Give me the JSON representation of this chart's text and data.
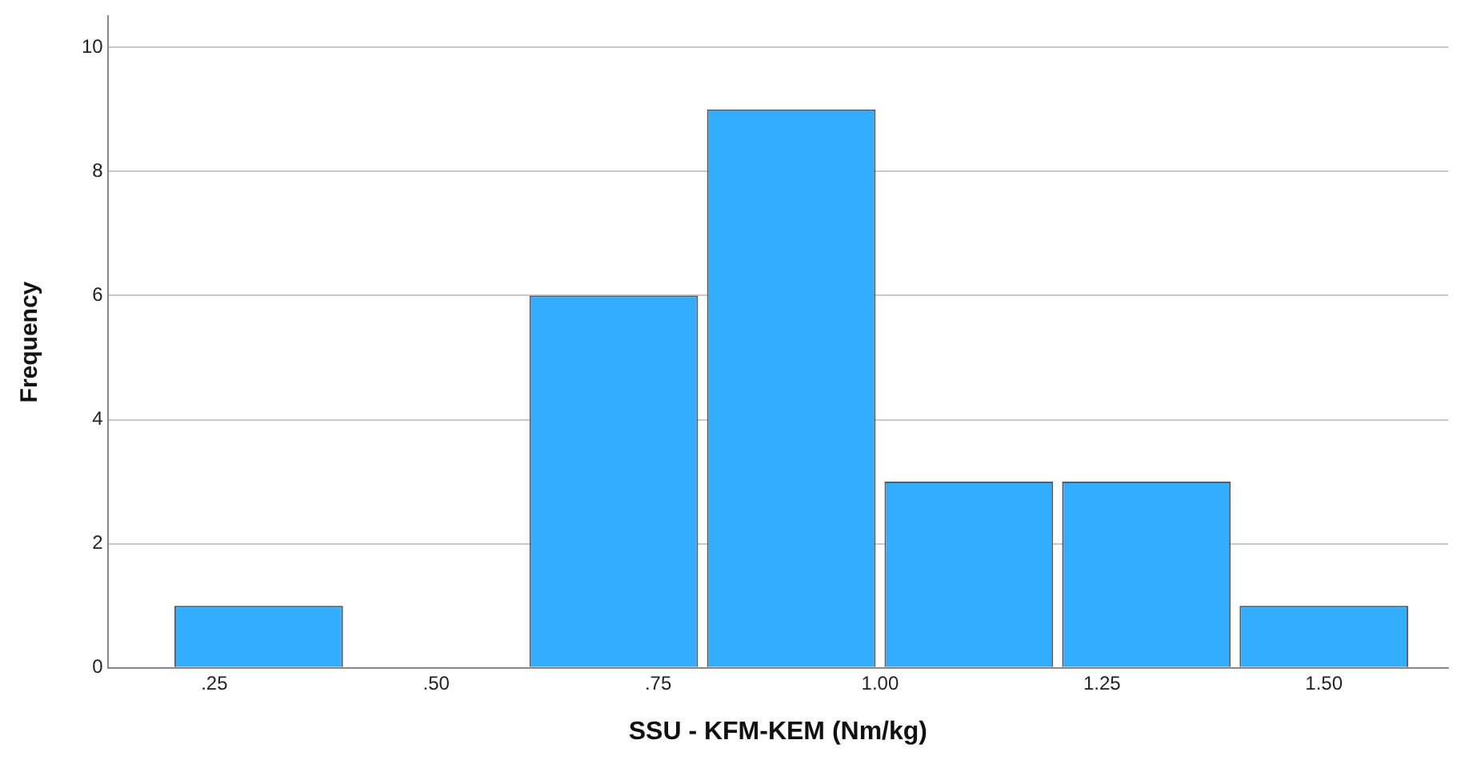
{
  "chart_data": {
    "type": "histogram",
    "xlabel": "SSU - KFM-KEM (Nm/kg)",
    "ylabel": "Frequency",
    "bins": [
      0.2,
      0.4,
      0.6,
      0.8,
      1.0,
      1.2,
      1.4,
      1.6
    ],
    "values": [
      1,
      0,
      6,
      9,
      3,
      3,
      1
    ],
    "color": "#33adff",
    "xlim": [
      0.13,
      1.64
    ],
    "xticks": [
      {
        "value": 0.25,
        "label": ".25"
      },
      {
        "value": 0.5,
        "label": ".50"
      },
      {
        "value": 0.75,
        "label": ".75"
      },
      {
        "value": 1.0,
        "label": "1.00"
      },
      {
        "value": 1.25,
        "label": "1.25"
      },
      {
        "value": 1.5,
        "label": "1.50"
      }
    ],
    "ylim": [
      0,
      10.5
    ],
    "yticks": [
      0,
      2,
      4,
      6,
      8,
      10
    ],
    "grid": "y"
  }
}
